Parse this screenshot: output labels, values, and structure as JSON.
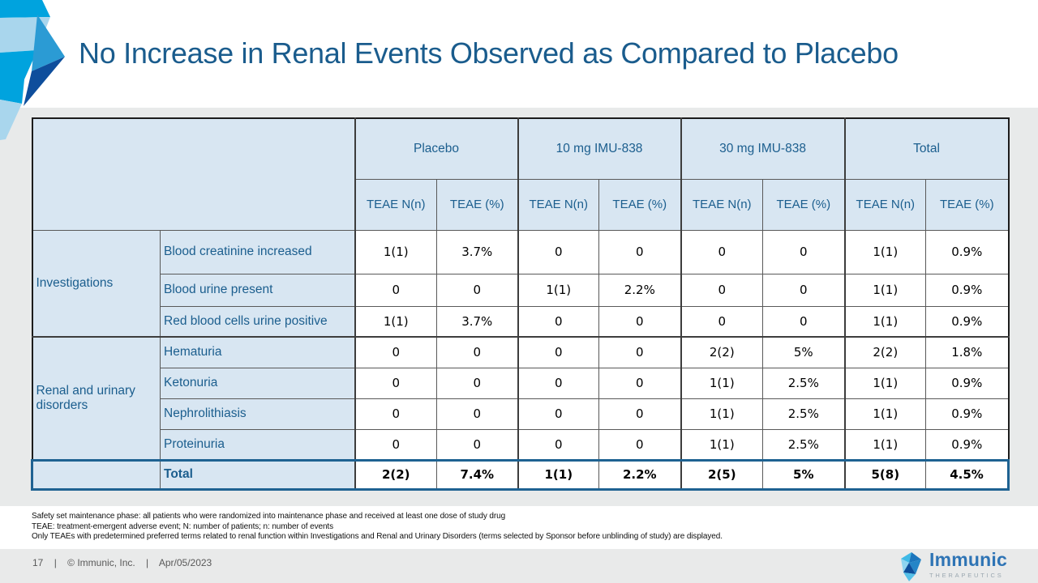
{
  "slide": {
    "title": "No Increase in Renal Events Observed as Compared to Placebo",
    "page_number": "17",
    "separator": "|",
    "copyright": "© Immunic, Inc.",
    "date": "Apr/05/2023",
    "logo": {
      "wordmark": "Immunic",
      "tagline": "THERAPEUTICS",
      "icon": "gem-icon"
    }
  },
  "table": {
    "col_groups": [
      "Placebo",
      "10 mg IMU-838",
      "30 mg IMU-838",
      "Total"
    ],
    "sub_headers": [
      "TEAE N(n)",
      "TEAE (%)"
    ],
    "row_groups": [
      {
        "group": "Investigations",
        "rows": [
          {
            "label": "Blood creatinine increased",
            "values": [
              "1(1)",
              "3.7%",
              "0",
              "0",
              "0",
              "0",
              "1(1)",
              "0.9%"
            ]
          },
          {
            "label": "Blood urine present",
            "values": [
              "0",
              "0",
              "1(1)",
              "2.2%",
              "0",
              "0",
              "1(1)",
              "0.9%"
            ]
          },
          {
            "label": "Red blood cells urine positive",
            "values": [
              "1(1)",
              "3.7%",
              "0",
              "0",
              "0",
              "0",
              "1(1)",
              "0.9%"
            ]
          }
        ]
      },
      {
        "group": "Renal and urinary disorders",
        "rows": [
          {
            "label": "Hematuria",
            "values": [
              "0",
              "0",
              "0",
              "0",
              "2(2)",
              "5%",
              "2(2)",
              "1.8%"
            ]
          },
          {
            "label": "Ketonuria",
            "values": [
              "0",
              "0",
              "0",
              "0",
              "1(1)",
              "2.5%",
              "1(1)",
              "0.9%"
            ]
          },
          {
            "label": "Nephrolithiasis",
            "values": [
              "0",
              "0",
              "0",
              "0",
              "1(1)",
              "2.5%",
              "1(1)",
              "0.9%"
            ]
          },
          {
            "label": "Proteinuria",
            "values": [
              "0",
              "0",
              "0",
              "0",
              "1(1)",
              "2.5%",
              "1(1)",
              "0.9%"
            ]
          }
        ]
      }
    ],
    "total_row": {
      "label": "Total",
      "values": [
        "2(2)",
        "7.4%",
        "1(1)",
        "2.2%",
        "2(5)",
        "5%",
        "5(8)",
        "4.5%"
      ]
    }
  },
  "footnotes": [
    "Safety set maintenance phase: all patients who were randomized into maintenance phase and received at least one dose of study drug",
    "TEAE:  treatment-emergent adverse event; N: number of patients; n: number of events",
    "Only TEAEs with predetermined preferred terms related to renal function within Investigations and Renal and Urinary Disorders (terms selected by Sponsor before unblinding of study) are displayed."
  ],
  "colors": {
    "title_blue": "#1a5c8d",
    "header_fill": "#d8e6f2",
    "header_text": "#1b5e8e",
    "total_outline": "#1e6292",
    "band_gray": "#e8eaea",
    "accent_cyan": "#00a3de",
    "accent_light_blue": "#a9d6ed",
    "accent_navy": "#0e4e9c",
    "logo_blue": "#2e74b5"
  }
}
